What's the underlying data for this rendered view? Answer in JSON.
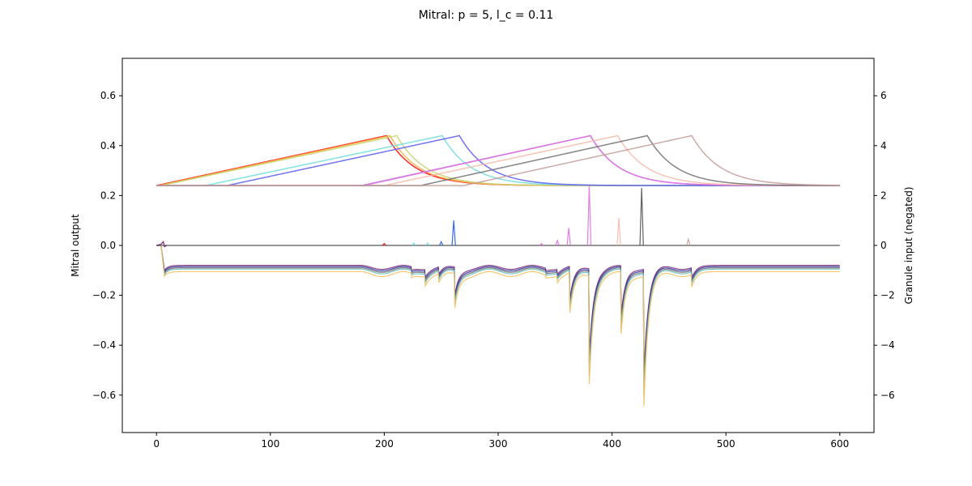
{
  "chart_data": {
    "type": "line",
    "title": "Mitral: p = 5, l_c = 0.11",
    "xlabel": "",
    "ylabel": "Mitral output",
    "ylabel_right": "Granule input (negated)",
    "xlim": [
      -30,
      630
    ],
    "ylim": [
      -0.75,
      0.75
    ],
    "ylim_right": [
      -7.5,
      7.5
    ],
    "x_ticks": [
      0,
      100,
      200,
      300,
      400,
      500,
      600
    ],
    "y_ticks": [
      -0.6,
      -0.4,
      -0.2,
      0.0,
      0.2,
      0.4,
      0.6
    ],
    "y_tick_labels": [
      "−0.6",
      "−0.4",
      "−0.2",
      "0.0",
      "0.2",
      "0.4",
      "0.6"
    ],
    "y_ticks_right": [
      -6,
      -4,
      -2,
      0,
      2,
      4,
      6
    ],
    "y_tick_labels_right": [
      "−6",
      "−4",
      "−2",
      "0",
      "2",
      "4",
      "6"
    ],
    "grid": false,
    "legend": "none",
    "baseline": 0.24,
    "peak": 0.44,
    "decay_tau": 25,
    "granule_series": [
      {
        "color": "#ff0000",
        "start": 0,
        "peak_x": 202
      },
      {
        "color": "#f5b041",
        "start": 2,
        "peak_x": 205
      },
      {
        "color": "#c8d46a",
        "start": 4,
        "peak_x": 211
      },
      {
        "color": "#6fdcdc",
        "start": 43,
        "peak_x": 251
      },
      {
        "color": "#5a5af0",
        "start": 62,
        "peak_x": 266
      },
      {
        "color": "#b07fe0",
        "start": 180,
        "peak_x": 381
      },
      {
        "color": "#e070e0",
        "start": 182,
        "peak_x": 381
      },
      {
        "color": "#f4b8a8",
        "start": 200,
        "peak_x": 405
      },
      {
        "color": "#707070",
        "start": 232,
        "peak_x": 431
      },
      {
        "color": "#c29c98",
        "start": 270,
        "peak_x": 470
      }
    ],
    "mitral_levels": [
      {
        "color": "#7a2a7a",
        "level": -0.08
      },
      {
        "color": "#3030a0",
        "level": -0.085
      },
      {
        "color": "#707070",
        "level": -0.09
      },
      {
        "color": "#6fc3c3",
        "level": -0.095
      },
      {
        "color": "#f5c060",
        "level": -0.105
      }
    ],
    "mitral_dips": [
      {
        "x": 224,
        "depth": 0.015
      },
      {
        "x": 236,
        "depth": 0.03
      },
      {
        "x": 248,
        "depth": 0.03
      },
      {
        "x": 262,
        "depth": 0.11
      },
      {
        "x": 342,
        "depth": 0.01
      },
      {
        "x": 352,
        "depth": 0.02
      },
      {
        "x": 363,
        "depth": 0.13
      },
      {
        "x": 380,
        "depth": 0.35
      },
      {
        "x": 408,
        "depth": 0.2
      },
      {
        "x": 428,
        "depth": 0.42
      },
      {
        "x": 470,
        "depth": 0.04
      }
    ],
    "mitral_spikes": [
      {
        "color": "#1e5ae6",
        "x": 261,
        "height": 0.1
      },
      {
        "color": "#1e5ae6",
        "x": 250,
        "height": 0.015
      },
      {
        "color": "#e070e0",
        "x": 380,
        "height": 0.24
      },
      {
        "color": "#e070e0",
        "x": 362,
        "height": 0.07
      },
      {
        "color": "#e070e0",
        "x": 352,
        "height": 0.02
      },
      {
        "color": "#f4b8a8",
        "x": 406,
        "height": 0.11
      },
      {
        "color": "#505050",
        "x": 426,
        "height": 0.23
      },
      {
        "color": "#c29c98",
        "x": 467,
        "height": 0.025
      },
      {
        "color": "#ff0000",
        "x": 200,
        "height": 0.008
      },
      {
        "color": "#6fdcdc",
        "x": 226,
        "height": 0.01
      },
      {
        "color": "#6fdcdc",
        "x": 238,
        "height": 0.01
      },
      {
        "color": "#e070e0",
        "x": 338,
        "height": 0.008
      }
    ],
    "onset_dip_x": 7,
    "onset_dip_depth": 0.1
  }
}
